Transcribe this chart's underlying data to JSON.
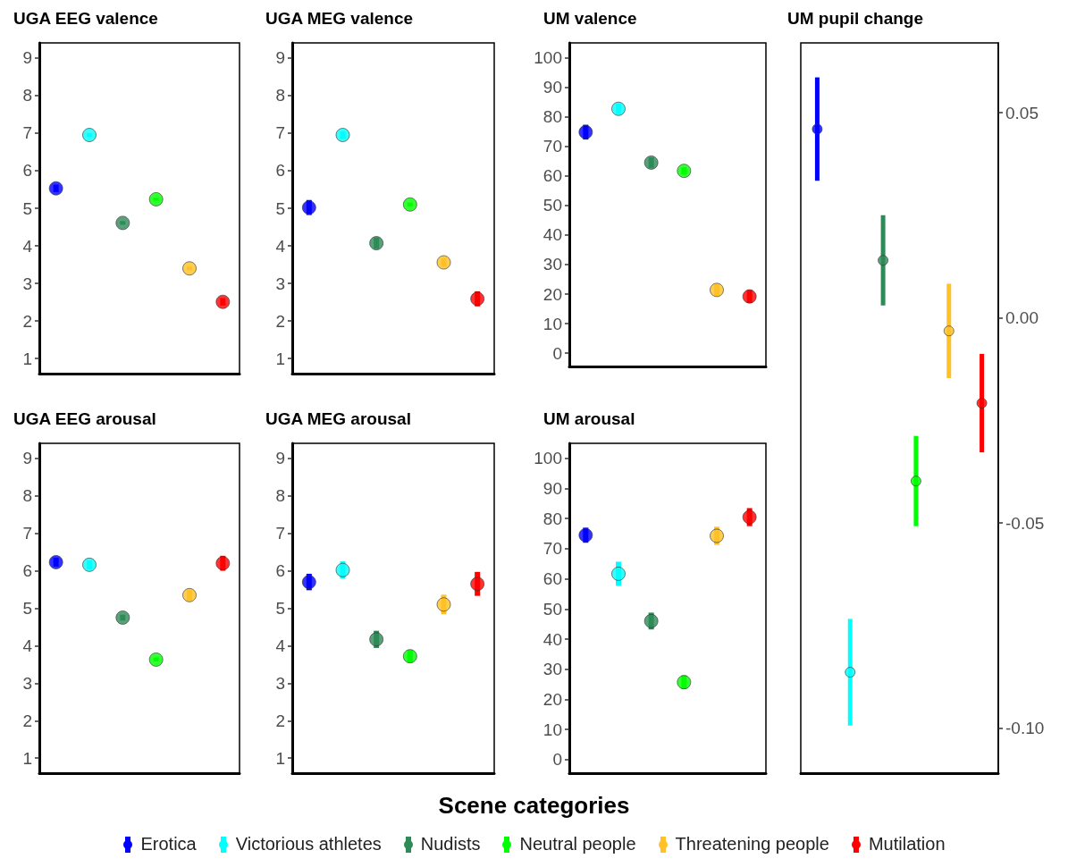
{
  "chart_data": [
    {
      "type": "scatter",
      "title": "UGA EEG valence",
      "categories": [
        null,
        null,
        null,
        null,
        null,
        null
      ],
      "ylim": [
        0.6,
        9.4
      ],
      "yticks": [
        1,
        2,
        3,
        4,
        5,
        6,
        7,
        8,
        9
      ],
      "tick_labels": "y",
      "grid": false,
      "marker": "circle",
      "legend": "bottom",
      "legend_title": "Scene categories",
      "series": [
        {
          "name": "Erotica",
          "color": "#0000ff",
          "values": [
            5.53,
            null,
            null,
            null,
            null,
            null
          ],
          "errors": [
            0.1,
            null,
            null,
            null,
            null,
            null
          ]
        },
        {
          "name": "Victorious athletes",
          "color": "#00ffff",
          "values": [
            null,
            6.95,
            null,
            null,
            null,
            null
          ],
          "errors": [
            null,
            0.05,
            null,
            null,
            null,
            null
          ]
        },
        {
          "name": "Nudists",
          "color": "#2e8b57",
          "values": [
            null,
            null,
            4.61,
            null,
            null,
            null
          ],
          "errors": [
            null,
            null,
            0.05,
            null,
            null,
            null
          ]
        },
        {
          "name": "Neutral people",
          "color": "#00ff00",
          "values": [
            null,
            null,
            null,
            5.24,
            null,
            null
          ],
          "errors": [
            null,
            null,
            null,
            0.04,
            null,
            null
          ]
        },
        {
          "name": "Threatening people",
          "color": "#ffc125",
          "values": [
            null,
            null,
            null,
            null,
            3.4,
            null
          ],
          "errors": [
            null,
            null,
            null,
            null,
            0.05,
            null
          ]
        },
        {
          "name": "Mutilation",
          "color": "#ff0000",
          "values": [
            null,
            null,
            null,
            null,
            null,
            2.51
          ],
          "errors": [
            null,
            null,
            null,
            null,
            null,
            0.1
          ]
        }
      ]
    },
    {
      "type": "scatter",
      "title": "UGA MEG valence",
      "categories": [
        null,
        null,
        null,
        null,
        null,
        null
      ],
      "ylim": [
        0.6,
        9.4
      ],
      "yticks": [
        1,
        2,
        3,
        4,
        5,
        6,
        7,
        8,
        9
      ],
      "tick_labels": "y",
      "grid": false,
      "marker": "circle",
      "series": [
        {
          "color": "#0000ff",
          "values": [
            5.02,
            null,
            null,
            null,
            null,
            null
          ],
          "errors": [
            0.2,
            null,
            null,
            null,
            null,
            null
          ]
        },
        {
          "color": "#00ffff",
          "values": [
            null,
            6.95,
            null,
            null,
            null,
            null
          ],
          "errors": [
            null,
            0.1,
            null,
            null,
            null,
            null
          ]
        },
        {
          "color": "#2e8b57",
          "values": [
            null,
            null,
            4.07,
            null,
            null,
            null
          ],
          "errors": [
            null,
            null,
            0.15,
            null,
            null,
            null
          ]
        },
        {
          "color": "#00ff00",
          "values": [
            null,
            null,
            null,
            5.1,
            null,
            null
          ],
          "errors": [
            null,
            null,
            null,
            0.05,
            null,
            null
          ]
        },
        {
          "color": "#ffc125",
          "values": [
            null,
            null,
            null,
            null,
            3.56,
            null
          ],
          "errors": [
            null,
            null,
            null,
            null,
            0.12,
            null
          ]
        },
        {
          "color": "#ff0000",
          "values": [
            null,
            null,
            null,
            null,
            null,
            2.59
          ],
          "errors": [
            null,
            null,
            null,
            null,
            null,
            0.2
          ]
        }
      ]
    },
    {
      "type": "scatter",
      "title": "UM valence",
      "categories": [
        null,
        null,
        null,
        null,
        null,
        null
      ],
      "ylim": [
        -4.5,
        105
      ],
      "yticks": [
        0,
        10,
        20,
        30,
        40,
        50,
        60,
        70,
        80,
        90,
        100
      ],
      "tick_labels": "y",
      "grid": false,
      "marker": "circle",
      "series": [
        {
          "color": "#0000ff",
          "values": [
            74.8,
            null,
            null,
            null,
            null,
            null
          ],
          "errors": [
            2.5,
            null,
            null,
            null,
            null,
            null
          ]
        },
        {
          "color": "#00ffff",
          "values": [
            null,
            82.7,
            null,
            null,
            null,
            null
          ],
          "errors": [
            null,
            1.8,
            null,
            null,
            null,
            null
          ]
        },
        {
          "color": "#2e8b57",
          "values": [
            null,
            null,
            64.5,
            null,
            null,
            null
          ],
          "errors": [
            null,
            null,
            1.8,
            null,
            null,
            null
          ]
        },
        {
          "color": "#00ff00",
          "values": [
            null,
            null,
            null,
            61.7,
            null,
            null
          ],
          "errors": [
            null,
            null,
            null,
            1.2,
            null,
            null
          ]
        },
        {
          "color": "#ffc125",
          "values": [
            null,
            null,
            null,
            null,
            21.4,
            null
          ],
          "errors": [
            null,
            null,
            null,
            null,
            2,
            null
          ]
        },
        {
          "color": "#ff0000",
          "values": [
            null,
            null,
            null,
            null,
            null,
            19.2
          ],
          "errors": [
            null,
            null,
            null,
            null,
            null,
            2.2
          ]
        }
      ]
    },
    {
      "type": "scatter",
      "title": "UGA EEG arousal",
      "categories": [
        null,
        null,
        null,
        null,
        null,
        null
      ],
      "ylim": [
        0.6,
        9.4
      ],
      "yticks": [
        1,
        2,
        3,
        4,
        5,
        6,
        7,
        8,
        9
      ],
      "tick_labels": "y",
      "grid": false,
      "marker": "circle",
      "series": [
        {
          "color": "#0000ff",
          "values": [
            6.23,
            null,
            null,
            null,
            null,
            null
          ],
          "errors": [
            0.12,
            null,
            null,
            null,
            null,
            null
          ]
        },
        {
          "color": "#00ffff",
          "values": [
            null,
            6.16,
            null,
            null,
            null,
            null
          ],
          "errors": [
            null,
            0.12,
            null,
            null,
            null,
            null
          ]
        },
        {
          "color": "#2e8b57",
          "values": [
            null,
            null,
            4.75,
            null,
            null,
            null
          ],
          "errors": [
            null,
            null,
            0.08,
            null,
            null,
            null
          ]
        },
        {
          "color": "#00ff00",
          "values": [
            null,
            null,
            null,
            3.63,
            null,
            null
          ],
          "errors": [
            null,
            null,
            null,
            0.05,
            null,
            null
          ]
        },
        {
          "color": "#ffc125",
          "values": [
            null,
            null,
            null,
            null,
            5.35,
            null
          ],
          "errors": [
            null,
            null,
            null,
            null,
            0.15,
            null
          ]
        },
        {
          "color": "#ff0000",
          "values": [
            null,
            null,
            null,
            null,
            null,
            6.2
          ],
          "errors": [
            null,
            null,
            null,
            null,
            null,
            0.2
          ]
        }
      ]
    },
    {
      "type": "scatter",
      "title": "UGA MEG arousal",
      "categories": [
        null,
        null,
        null,
        null,
        null,
        null
      ],
      "ylim": [
        0.6,
        9.4
      ],
      "yticks": [
        1,
        2,
        3,
        4,
        5,
        6,
        7,
        8,
        9
      ],
      "tick_labels": "y",
      "grid": false,
      "marker": "circle",
      "series": [
        {
          "color": "#0000ff",
          "values": [
            5.7,
            null,
            null,
            null,
            null,
            null
          ],
          "errors": [
            0.22,
            null,
            null,
            null,
            null,
            null
          ]
        },
        {
          "color": "#00ffff",
          "values": [
            null,
            6.02,
            null,
            null,
            null,
            null
          ],
          "errors": [
            null,
            0.23,
            null,
            null,
            null,
            null
          ]
        },
        {
          "color": "#2e8b57",
          "values": [
            null,
            null,
            4.17,
            null,
            null,
            null
          ],
          "errors": [
            null,
            null,
            0.23,
            null,
            null,
            null
          ]
        },
        {
          "color": "#00ff00",
          "values": [
            null,
            null,
            null,
            3.72,
            null,
            null
          ],
          "errors": [
            null,
            null,
            null,
            0.17,
            null,
            null
          ]
        },
        {
          "color": "#ffc125",
          "values": [
            null,
            null,
            null,
            null,
            5.1,
            null
          ],
          "errors": [
            null,
            null,
            null,
            null,
            0.26,
            null
          ]
        },
        {
          "color": "#ff0000",
          "values": [
            null,
            null,
            null,
            null,
            null,
            5.65
          ],
          "errors": [
            null,
            null,
            null,
            null,
            null,
            0.32
          ]
        }
      ]
    },
    {
      "type": "scatter",
      "title": "UM arousal",
      "categories": [
        null,
        null,
        null,
        null,
        null,
        null
      ],
      "ylim": [
        -4.5,
        105
      ],
      "yticks": [
        0,
        10,
        20,
        30,
        40,
        50,
        60,
        70,
        80,
        90,
        100
      ],
      "tick_labels": "y",
      "grid": false,
      "marker": "circle",
      "series": [
        {
          "color": "#0000ff",
          "values": [
            74.5,
            null,
            null,
            null,
            null,
            null
          ],
          "errors": [
            2.5,
            null,
            null,
            null,
            null,
            null
          ]
        },
        {
          "color": "#00ffff",
          "values": [
            null,
            61.7,
            null,
            null,
            null,
            null
          ],
          "errors": [
            null,
            4,
            null,
            null,
            null,
            null
          ]
        },
        {
          "color": "#2e8b57",
          "values": [
            null,
            null,
            46,
            null,
            null,
            null
          ],
          "errors": [
            null,
            null,
            2.8,
            null,
            null,
            null
          ]
        },
        {
          "color": "#00ff00",
          "values": [
            null,
            null,
            null,
            25.7,
            null,
            null
          ],
          "errors": [
            null,
            null,
            null,
            2.3,
            null,
            null
          ]
        },
        {
          "color": "#ffc125",
          "values": [
            null,
            null,
            null,
            null,
            74.3,
            null
          ],
          "errors": [
            null,
            null,
            null,
            null,
            3,
            null
          ]
        },
        {
          "color": "#ff0000",
          "values": [
            null,
            null,
            null,
            null,
            null,
            80.5
          ],
          "errors": [
            null,
            null,
            null,
            null,
            null,
            3
          ]
        }
      ]
    },
    {
      "type": "scatter",
      "title": "UM pupil change",
      "categories": [
        null,
        null,
        null,
        null,
        null,
        null
      ],
      "y2lim": [
        -0.111,
        0.067
      ],
      "y2ticks": [
        {
          "value": 0.05,
          "label": "0.05"
        },
        {
          "value": 0,
          "label": "0.00"
        },
        {
          "value": -0.05,
          "label": "-0.05"
        },
        {
          "value": -0.1,
          "label": "-0.10"
        }
      ],
      "tick_labels": "y",
      "grid": false,
      "marker": "circle",
      "series": [
        {
          "color": "#0000ff",
          "axis": "y2",
          "values": [
            0.046,
            null,
            null,
            null,
            null,
            null
          ],
          "errors": [
            0.0126,
            null,
            null,
            null,
            null,
            null
          ]
        },
        {
          "color": "#00ffff",
          "axis": "y2",
          "values": [
            null,
            -0.0864,
            null,
            null,
            null,
            null
          ],
          "errors": [
            null,
            0.013,
            null,
            null,
            null,
            null
          ]
        },
        {
          "color": "#2e8b57",
          "axis": "y2",
          "values": [
            null,
            null,
            0.014,
            null,
            null,
            null
          ],
          "errors": [
            null,
            null,
            0.011,
            null,
            null,
            null
          ]
        },
        {
          "color": "#00ff00",
          "axis": "y2",
          "values": [
            null,
            null,
            null,
            -0.0398,
            null,
            null
          ],
          "errors": [
            null,
            null,
            null,
            0.011,
            null,
            null
          ]
        },
        {
          "color": "#ffc125",
          "axis": "y2",
          "values": [
            null,
            null,
            null,
            null,
            -0.0032,
            null
          ],
          "errors": [
            null,
            null,
            null,
            null,
            0.0115,
            null
          ]
        },
        {
          "color": "#ff0000",
          "axis": "y2",
          "values": [
            null,
            null,
            null,
            null,
            null,
            -0.0208
          ],
          "errors": [
            null,
            null,
            null,
            null,
            null,
            0.012
          ]
        }
      ]
    }
  ]
}
